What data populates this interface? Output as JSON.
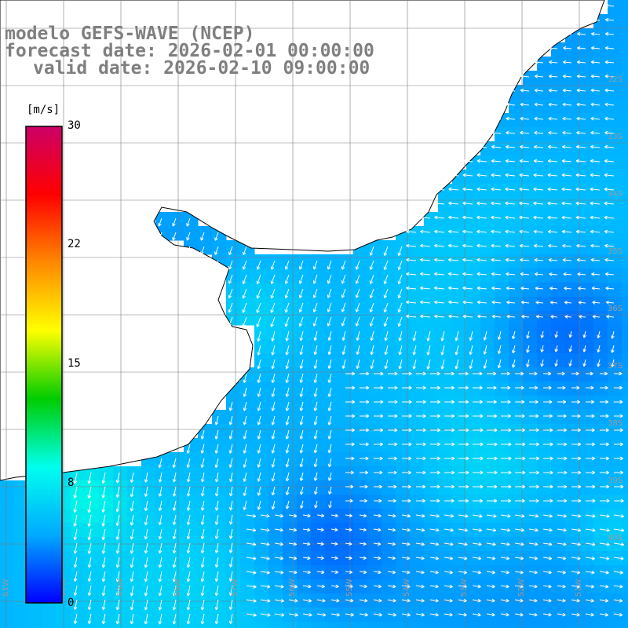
{
  "title": {
    "model": "modelo GEFS-WAVE (NCEP)",
    "forecast": "forecast date: 2026-02-01 00:00:00",
    "valid": "valid date: 2026-02-10 09:00:00"
  },
  "colorbar": {
    "unit": "[m/s]",
    "ticks": [
      "30",
      "22",
      "15",
      "8",
      "0"
    ],
    "values": [
      30,
      22,
      15,
      8,
      0
    ],
    "stops": [
      "#0000ff",
      "#00aaff",
      "#00ffee",
      "#00cc00",
      "#ffff00",
      "#ff8800",
      "#ff0000",
      "#cc0066"
    ]
  },
  "colors": {
    "land": "#ffffff",
    "coast": "#000000",
    "grid": "#7a7a7a",
    "arrow": "#ffffff",
    "title": "#7f7f7f"
  },
  "lat_labels": [
    "32S",
    "33S",
    "34S",
    "35S",
    "36S",
    "37S",
    "38S",
    "39S",
    "40S"
  ],
  "lon_labels": [
    "61W",
    "60W",
    "59W",
    "58W",
    "57W",
    "56W",
    "55W",
    "54W",
    "53W",
    "52W",
    "51W"
  ]
}
